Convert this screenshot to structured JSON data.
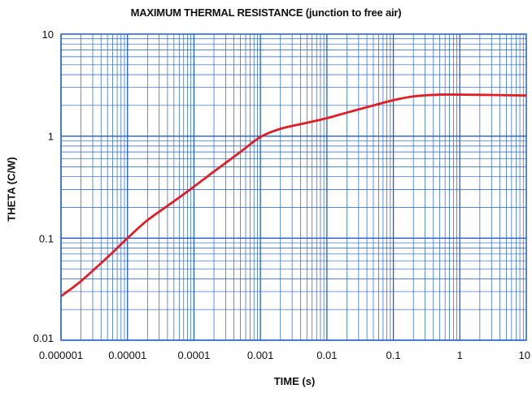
{
  "chart_data": {
    "type": "line",
    "title": "MAXIMUM THERMAL RESISTANCE (junction to free air)",
    "xlabel": "TIME (s)",
    "ylabel": "THETA (C/W)",
    "xscale": "log",
    "yscale": "log",
    "xlim": [
      1e-06,
      10
    ],
    "ylim": [
      0.01,
      10
    ],
    "grid": true,
    "x_tick_labels": [
      "0.000001",
      "0.00001",
      "0.0001",
      "0.001",
      "0.01",
      "0.1",
      "1",
      "10"
    ],
    "y_tick_labels": [
      "0.01",
      "0.1",
      "1",
      "10"
    ],
    "series": [
      {
        "color": "#e01e24",
        "x": [
          1e-06,
          2e-06,
          5e-06,
          1e-05,
          2e-05,
          5e-05,
          0.0001,
          0.0002,
          0.0005,
          0.001,
          0.002,
          0.005,
          0.01,
          0.02,
          0.05,
          0.1,
          0.2,
          0.5,
          1,
          2,
          5,
          10
        ],
        "y": [
          0.027,
          0.038,
          0.065,
          0.1,
          0.15,
          0.23,
          0.32,
          0.45,
          0.7,
          0.98,
          1.18,
          1.35,
          1.5,
          1.7,
          2.0,
          2.25,
          2.45,
          2.55,
          2.55,
          2.54,
          2.52,
          2.5
        ]
      }
    ],
    "colors": {
      "grid": "#1f5fd0",
      "axis": "#1f5fd0",
      "line": "#e01e24"
    }
  }
}
